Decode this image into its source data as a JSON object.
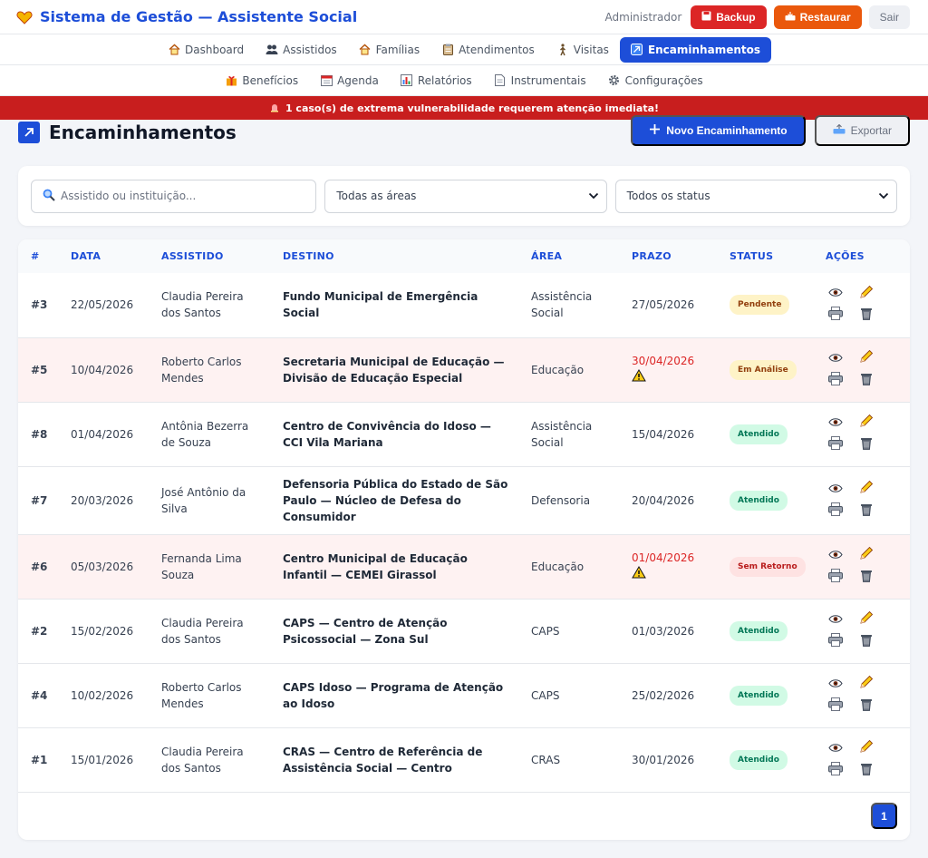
{
  "header": {
    "title": "Sistema de Gestão — Assistente Social",
    "user": "Administrador",
    "backup_label": "Backup",
    "restore_label": "Restaurar",
    "logout_label": "Sair"
  },
  "nav_primary": [
    {
      "label": "Dashboard",
      "icon": "house-icon"
    },
    {
      "label": "Assistidos",
      "icon": "people-icon"
    },
    {
      "label": "Famílias",
      "icon": "house-icon"
    },
    {
      "label": "Atendimentos",
      "icon": "clipboard-icon"
    },
    {
      "label": "Visitas",
      "icon": "walking-icon"
    },
    {
      "label": "Encaminhamentos",
      "icon": "arrow-icon",
      "active": true
    }
  ],
  "nav_secondary": [
    {
      "label": "Benefícios",
      "icon": "gift-icon"
    },
    {
      "label": "Agenda",
      "icon": "calendar-icon"
    },
    {
      "label": "Relatórios",
      "icon": "chart-icon"
    },
    {
      "label": "Instrumentais",
      "icon": "document-icon"
    },
    {
      "label": "Configurações",
      "icon": "gear-icon"
    }
  ],
  "alert": {
    "text": "1 caso(s) de extrema vulnerabilidade requerem atenção imediata!"
  },
  "page": {
    "title": "Encaminhamentos",
    "new_label": "Novo Encaminhamento",
    "export_label": "Exportar"
  },
  "filters": {
    "search_placeholder": "Assistido ou instituição...",
    "area_selected": "Todas as áreas",
    "status_selected": "Todos os status"
  },
  "table": {
    "headers": [
      "#",
      "DATA",
      "ASSISTIDO",
      "DESTINO",
      "ÁREA",
      "PRAZO",
      "STATUS",
      "AÇÕES"
    ],
    "rows": [
      {
        "id": "#3",
        "date": "22/05/2026",
        "person": "Claudia Pereira dos Santos",
        "dest": "Fundo Municipal de Emergência Social",
        "area": "Assistência Social",
        "deadline": "27/05/2026",
        "late": false,
        "status": "Pendente",
        "status_kind": "pend"
      },
      {
        "id": "#5",
        "date": "10/04/2026",
        "person": "Roberto Carlos Mendes",
        "dest": "Secretaria Municipal de Educação — Divisão de Educação Especial",
        "area": "Educação",
        "deadline": "30/04/2026",
        "late": true,
        "status": "Em Análise",
        "status_kind": "anal"
      },
      {
        "id": "#8",
        "date": "01/04/2026",
        "person": "Antônia Bezerra de Souza",
        "dest": "Centro de Convivência do Idoso — CCI Vila Mariana",
        "area": "Assistência Social",
        "deadline": "15/04/2026",
        "late": false,
        "status": "Atendido",
        "status_kind": "ok"
      },
      {
        "id": "#7",
        "date": "20/03/2026",
        "person": "José Antônio da Silva",
        "dest": "Defensoria Pública do Estado de São Paulo — Núcleo de Defesa do Consumidor",
        "area": "Defensoria",
        "deadline": "20/04/2026",
        "late": false,
        "status": "Atendido",
        "status_kind": "ok",
        "tall": true
      },
      {
        "id": "#6",
        "date": "05/03/2026",
        "person": "Fernanda Lima Souza",
        "dest": "Centro Municipal de Educação Infantil — CEMEI Girassol",
        "area": "Educação",
        "deadline": "01/04/2026",
        "late": true,
        "status": "Sem Retorno",
        "status_kind": "sem"
      },
      {
        "id": "#2",
        "date": "15/02/2026",
        "person": "Claudia Pereira dos Santos",
        "dest": "CAPS — Centro de Atenção Psicossocial — Zona Sul",
        "area": "CAPS",
        "deadline": "01/03/2026",
        "late": false,
        "status": "Atendido",
        "status_kind": "ok"
      },
      {
        "id": "#4",
        "date": "10/02/2026",
        "person": "Roberto Carlos Mendes",
        "dest": "CAPS Idoso — Programa de Atenção ao Idoso",
        "area": "CAPS",
        "deadline": "25/02/2026",
        "late": false,
        "status": "Atendido",
        "status_kind": "ok"
      },
      {
        "id": "#1",
        "date": "15/01/2026",
        "person": "Claudia Pereira dos Santos",
        "dest": "CRAS — Centro de Referência de Assistência Social — Centro",
        "area": "CRAS",
        "deadline": "30/01/2026",
        "late": false,
        "status": "Atendido",
        "status_kind": "ok"
      }
    ]
  },
  "pagination": {
    "current": "1"
  }
}
